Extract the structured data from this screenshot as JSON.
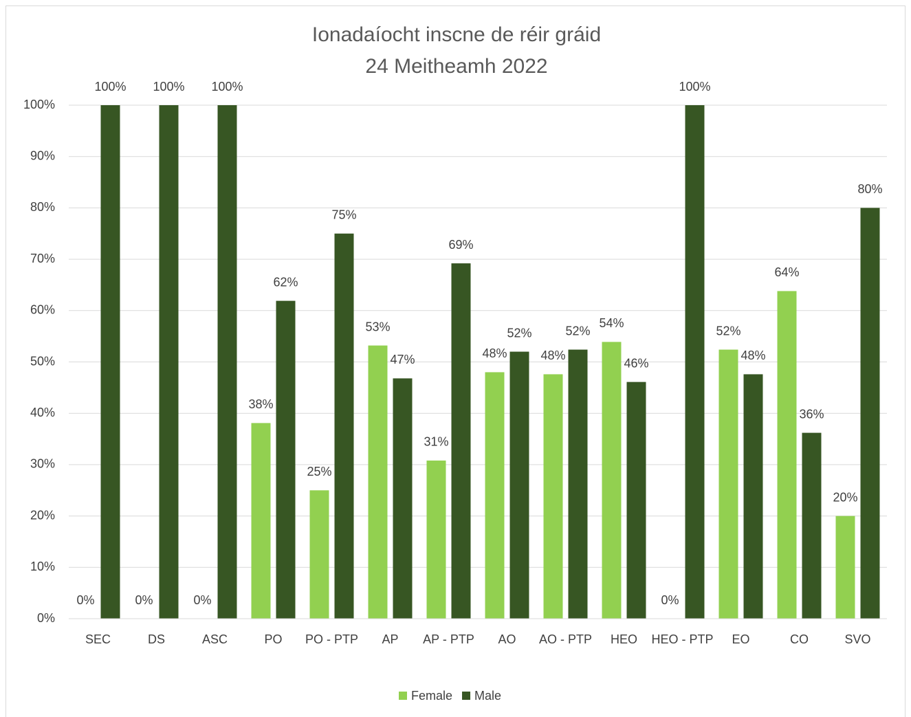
{
  "chart_data": {
    "type": "bar",
    "title": "Ionadaíocht inscne de réir gráid",
    "subtitle": "24 Meitheamh 2022",
    "categories": [
      "SEC",
      "DS",
      "ASC",
      "PO",
      "PO - PTP",
      "AP",
      "AP - PTP",
      "AO",
      "AO - PTP",
      "HEO",
      "HEO - PTP",
      "EO",
      "CO",
      "SVO"
    ],
    "series": [
      {
        "name": "Female",
        "color": "#92d050",
        "values": [
          0,
          0,
          0,
          38.1,
          25,
          53.2,
          30.8,
          48,
          47.6,
          53.9,
          0,
          52.4,
          63.8,
          20
        ],
        "value_labels": [
          "0%",
          "0%",
          "0%",
          "38%",
          "25%",
          "53%",
          "31%",
          "48%",
          "48%",
          "54%",
          "0%",
          "52%",
          "64%",
          "20%"
        ]
      },
      {
        "name": "Male",
        "color": "#375623",
        "values": [
          100,
          100,
          100,
          61.9,
          75,
          46.8,
          69.2,
          52,
          52.4,
          46.1,
          100,
          47.6,
          36.2,
          80
        ],
        "value_labels": [
          "100%",
          "100%",
          "100%",
          "62%",
          "75%",
          "47%",
          "69%",
          "52%",
          "52%",
          "46%",
          "100%",
          "48%",
          "36%",
          "80%"
        ]
      }
    ],
    "ylim": [
      0,
      100
    ],
    "yticks": [
      {
        "value": 0,
        "label": "0%"
      },
      {
        "value": 10,
        "label": "10%"
      },
      {
        "value": 20,
        "label": "20%"
      },
      {
        "value": 30,
        "label": "30%"
      },
      {
        "value": 40,
        "label": "40%"
      },
      {
        "value": 50,
        "label": "50%"
      },
      {
        "value": 60,
        "label": "60%"
      },
      {
        "value": 70,
        "label": "70%"
      },
      {
        "value": 80,
        "label": "80%"
      },
      {
        "value": 90,
        "label": "90%"
      },
      {
        "value": 100,
        "label": "100%"
      }
    ],
    "grid": true,
    "legend": "bottom"
  }
}
